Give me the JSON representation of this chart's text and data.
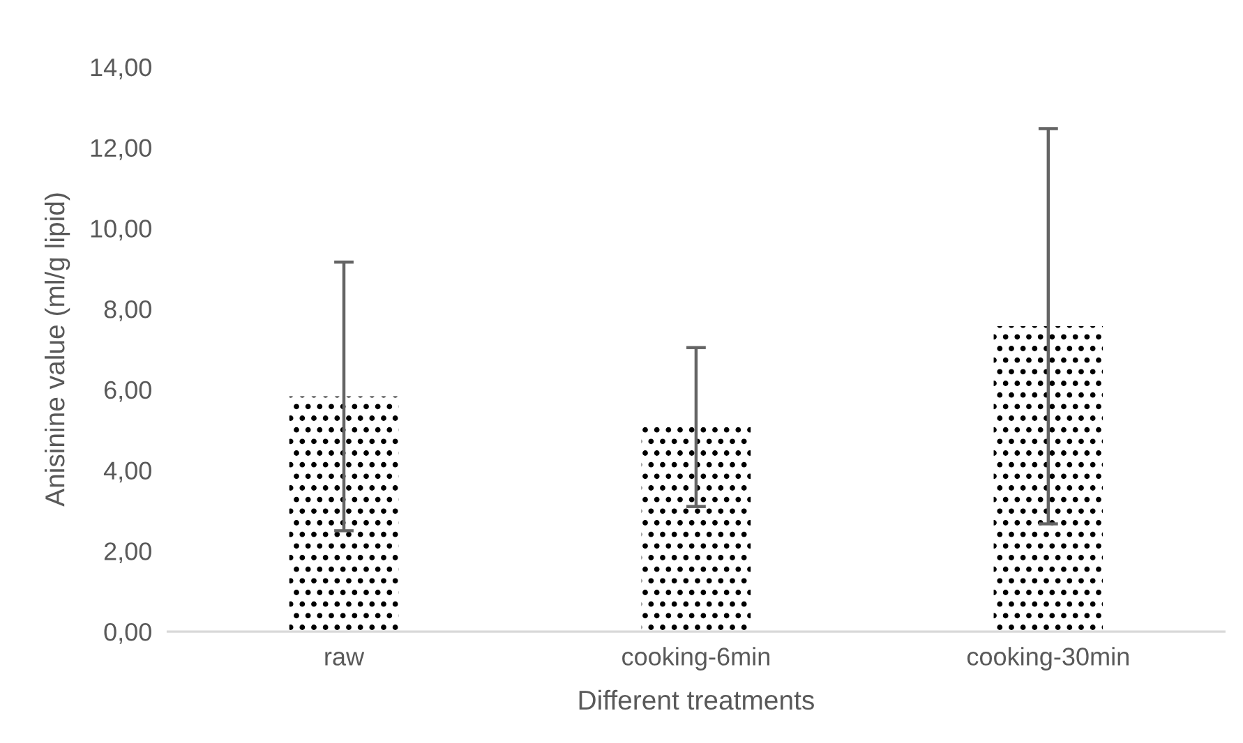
{
  "chart_data": {
    "type": "bar",
    "xlabel": "Different treatments",
    "ylabel": "Anisinine value (ml/g lipid)",
    "categories": [
      "raw",
      "cooking-6min",
      "cooking-30min"
    ],
    "values": [
      5.83,
      5.07,
      7.57
    ],
    "errors": [
      3.33,
      1.97,
      4.9
    ],
    "color": "#000000",
    "ylim": [
      0,
      14
    ],
    "yticks": [
      {
        "value": 0,
        "label": "0,00"
      },
      {
        "value": 2,
        "label": "2,00"
      },
      {
        "value": 4,
        "label": "4,00"
      },
      {
        "value": 6,
        "label": "6,00"
      },
      {
        "value": 8,
        "label": "8,00"
      },
      {
        "value": 10,
        "label": "10,00"
      },
      {
        "value": 12,
        "label": "12,00"
      },
      {
        "value": 14,
        "label": "14,00"
      }
    ],
    "grid": false
  }
}
